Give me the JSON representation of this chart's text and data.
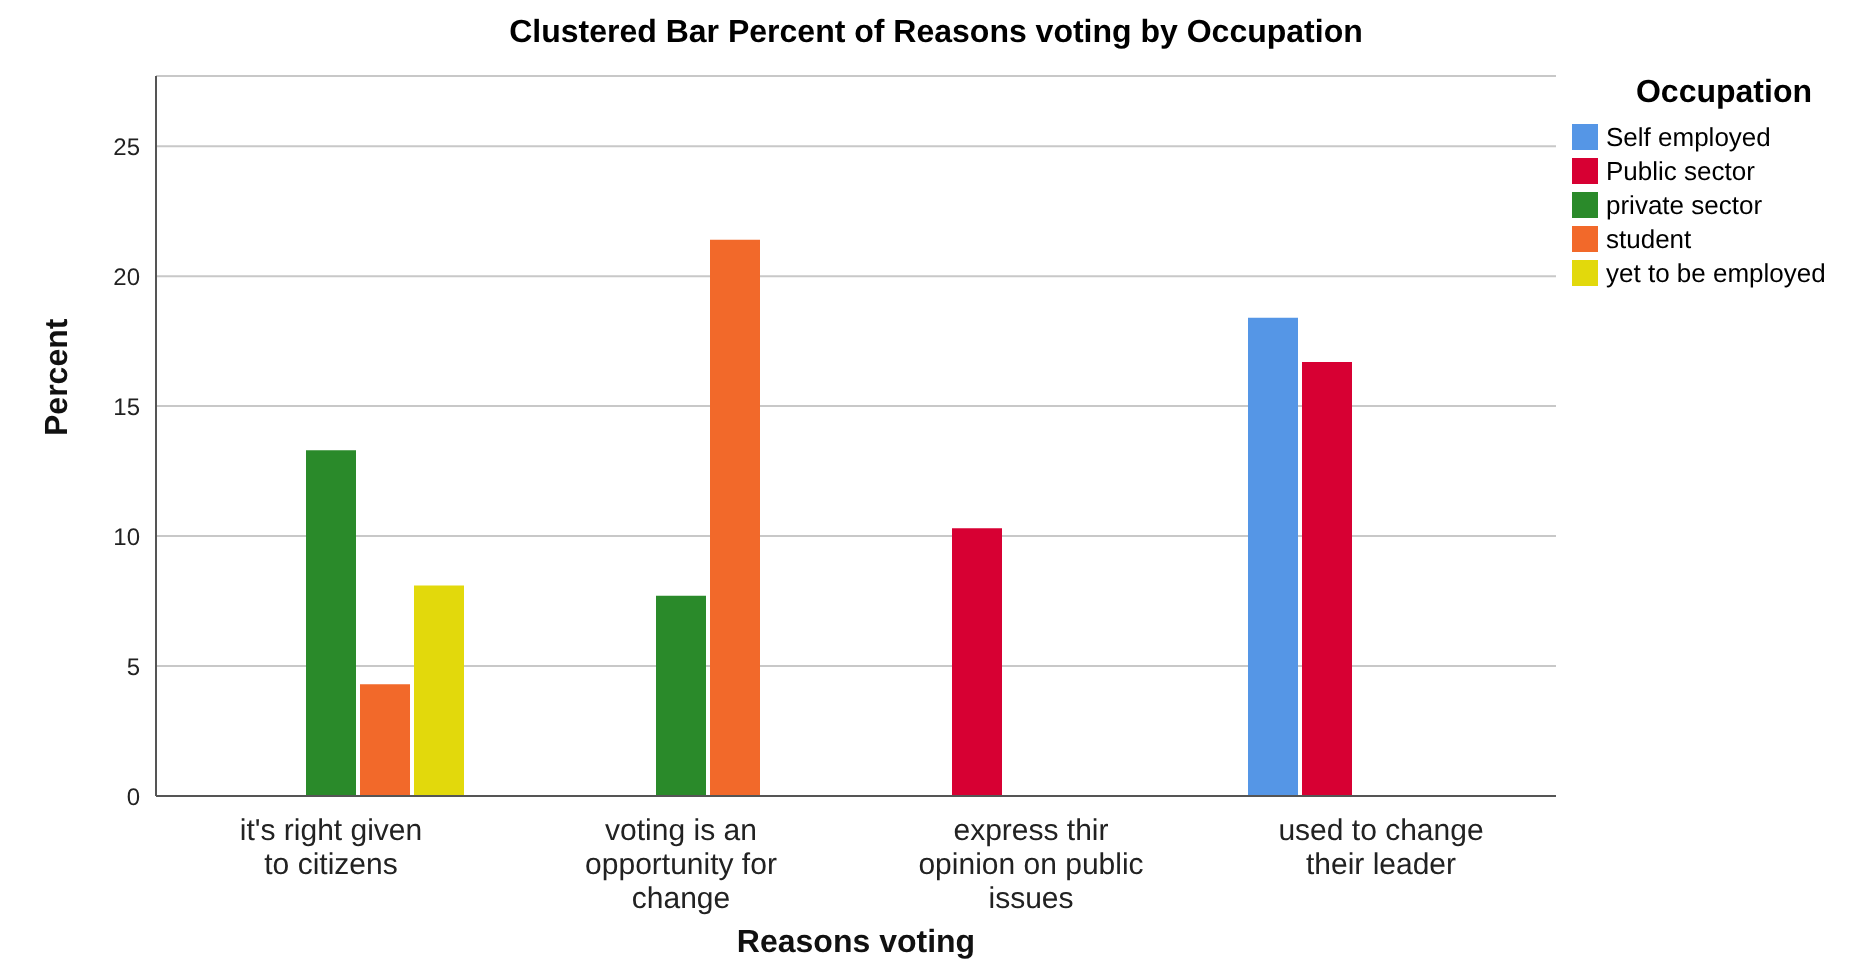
{
  "chart_data": {
    "type": "bar",
    "title": "Clustered Bar Percent of Reasons voting  by Occupation",
    "xlabel": "Reasons voting",
    "ylabel": "Percent",
    "legend_title": "Occupation",
    "categories": [
      "it's right given to citizens",
      "voting is an opportunity for change",
      "express thir opinion on public issues",
      "used to change their leader"
    ],
    "series": [
      {
        "name": "Self employed",
        "color": "#5596e6",
        "values": [
          null,
          null,
          null,
          18.4
        ]
      },
      {
        "name": "Public sector",
        "color": "#d70033",
        "values": [
          null,
          null,
          10.3,
          16.7
        ]
      },
      {
        "name": "private sector",
        "color": "#2a8a2a",
        "values": [
          13.3,
          7.7,
          null,
          null
        ]
      },
      {
        "name": "student",
        "color": "#f2692a",
        "values": [
          4.3,
          21.4,
          null,
          null
        ]
      },
      {
        "name": "yet to be employed",
        "color": "#e2d90c",
        "values": [
          8.1,
          null,
          null,
          null
        ]
      }
    ],
    "ylim": [
      0,
      27.7
    ],
    "yticks": [
      0,
      5,
      10,
      15,
      20,
      25
    ],
    "grid": "y",
    "legend": "top right"
  }
}
